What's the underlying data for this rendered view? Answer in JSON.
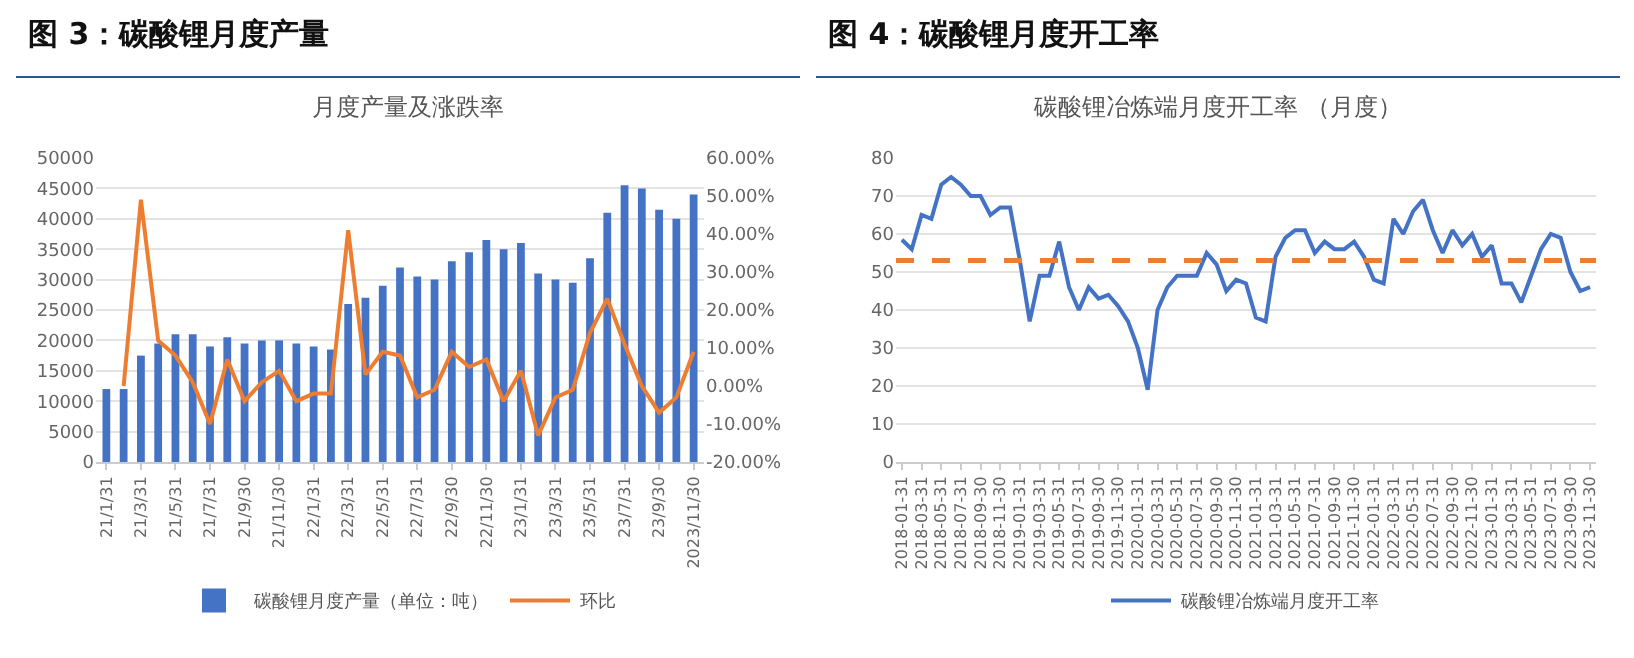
{
  "chart_data": [
    {
      "type": "bar",
      "title": "图 3：碳酸锂月度产量",
      "subtitle": "月度产量及涨跌率",
      "categories": [
        "21/1/31",
        null,
        "21/3/31",
        null,
        "21/5/31",
        null,
        "21/7/31",
        null,
        "21/9/30",
        null,
        "21/11/30",
        null,
        "22/1/31",
        null,
        "22/3/31",
        null,
        "22/5/31",
        null,
        "22/7/31",
        null,
        "22/9/30",
        null,
        "22/11/30",
        null,
        "23/1/31",
        null,
        "23/3/31",
        null,
        "23/5/31",
        null,
        "23/7/31",
        null,
        "23/9/30",
        null,
        "2023/11/30"
      ],
      "series": [
        {
          "name": "碳酸锂月度产量（单位：吨）",
          "color": "#4472c4",
          "values": [
            12000,
            12000,
            17500,
            19500,
            21000,
            21000,
            19000,
            20500,
            19500,
            20000,
            20000,
            19500,
            19000,
            18500,
            26000,
            27000,
            29000,
            32000,
            30500,
            30000,
            33000,
            34500,
            36500,
            35000,
            36000,
            31000,
            30000,
            29500,
            33500,
            41000,
            45500,
            45000,
            41500,
            40000,
            44000
          ]
        },
        {
          "name": "环比",
          "type": "line",
          "axis": "y2",
          "color": "#ed7d31",
          "values": [
            null,
            0,
            49,
            12,
            8,
            1,
            -10,
            7,
            -4,
            1,
            4,
            -4,
            -2,
            -2,
            41,
            3,
            9,
            8,
            -3,
            -1,
            9,
            5,
            7,
            -4,
            4,
            -13,
            -3,
            -1,
            14,
            23,
            11,
            0,
            -7,
            -3,
            9
          ]
        }
      ],
      "ylim": [
        0,
        50000
      ],
      "yticks": [
        0,
        5000,
        10000,
        15000,
        20000,
        25000,
        30000,
        35000,
        40000,
        45000,
        50000
      ],
      "y2lim": [
        -20,
        60
      ],
      "y2ticks": [
        {
          "value": -20,
          "label": "-20.00%"
        },
        {
          "value": -10,
          "label": "-10.00%"
        },
        {
          "value": 0,
          "label": "0.00%"
        },
        {
          "value": 10,
          "label": "10.00%"
        },
        {
          "value": 20,
          "label": "20.00%"
        },
        {
          "value": 30,
          "label": "30.00%"
        },
        {
          "value": 40,
          "label": "40.00%"
        },
        {
          "value": 50,
          "label": "50.00%"
        },
        {
          "value": 60,
          "label": "60.00%"
        }
      ],
      "grid": "y",
      "legend": "bottom"
    },
    {
      "type": "line",
      "title": "图 4：碳酸锂月度开工率",
      "subtitle": "碳酸锂冶炼端月度开工率 （月度）",
      "categories": [
        "2018-01-31",
        null,
        "2018-03-31",
        null,
        "2018-05-31",
        null,
        "2018-07-31",
        null,
        "2018-09-30",
        null,
        "2018-11-30",
        null,
        "2019-01-31",
        null,
        "2019-03-31",
        null,
        "2019-05-31",
        null,
        "2019-07-31",
        null,
        "2019-09-30",
        null,
        "2019-11-30",
        null,
        "2020-01-31",
        null,
        "2020-03-31",
        null,
        "2020-05-31",
        null,
        "2020-07-31",
        null,
        "2020-09-30",
        null,
        "2020-11-30",
        null,
        "2021-01-31",
        null,
        "2021-03-31",
        null,
        "2021-05-31",
        null,
        "2021-07-31",
        null,
        "2021-09-30",
        null,
        "2021-11-30",
        null,
        "2022-01-31",
        null,
        "2022-03-31",
        null,
        "2022-05-31",
        null,
        "2022-07-31",
        null,
        "2022-09-30",
        null,
        "2022-11-30",
        null,
        "2023-01-31",
        null,
        "2023-03-31",
        null,
        "2023-05-31",
        null,
        "2023-07-31",
        null,
        "2023-09-30",
        null,
        "2023-11-30"
      ],
      "series": [
        {
          "name": "碳酸锂冶炼端月度开工率",
          "color": "#4472c4",
          "values": [
            58.5,
            56,
            65,
            64,
            73,
            75,
            73,
            70,
            70,
            65,
            67,
            67,
            53,
            37,
            49,
            49,
            58,
            46,
            40,
            46,
            43,
            44,
            41,
            37,
            30,
            19,
            40,
            46,
            49,
            49,
            49,
            55,
            52,
            45,
            48,
            47,
            38,
            37,
            54,
            59,
            61,
            61,
            55,
            58,
            56,
            56,
            58,
            54,
            48,
            47,
            64,
            60,
            66,
            69,
            61,
            55,
            61,
            57,
            60,
            54,
            57,
            47,
            47,
            42,
            49,
            56,
            60,
            59,
            50,
            45,
            46
          ]
        }
      ],
      "ylim": [
        0,
        80
      ],
      "yticks": [
        0,
        10,
        20,
        30,
        40,
        50,
        60,
        70,
        80
      ],
      "ref_lines": [
        {
          "axis": "y",
          "value": 53,
          "color": "#ed7d31",
          "line_style": "dashed"
        }
      ],
      "grid": "y",
      "legend": "bottom",
      "marker": "none"
    }
  ]
}
